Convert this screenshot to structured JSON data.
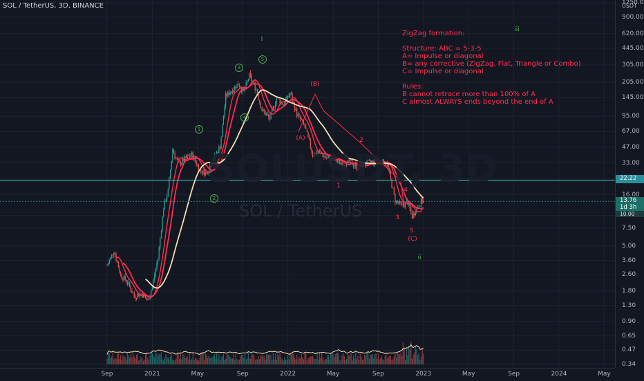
{
  "header": {
    "symbol_title": "SOL / TetherUS, 3D, BINANCE"
  },
  "watermark": {
    "ticker": "SOLUSDT, 3D",
    "pair": "SOL / TetherUS"
  },
  "annotation": {
    "lines": [
      "ZigZag formation:",
      "",
      "Structure: ABC = 5-3-5",
      "A= Impulse or diagonal",
      "B= any corrective (ZigZag, Flat, Triangle or Combo)",
      "C= Impulse or diagonal",
      "",
      "Rules:",
      "B cannot retrace more than 100% of A",
      "C almost ALWAYS ends beyond the end of A"
    ]
  },
  "wave_labels": {
    "major": [
      "I",
      "iii",
      "ii"
    ],
    "impulse": [
      "1",
      "2",
      "3",
      "4",
      "5"
    ],
    "corrective": [
      "(A)",
      "(B)",
      "(C)"
    ],
    "sub_c": [
      "1",
      "2",
      "3",
      "4",
      "5"
    ]
  },
  "price_tags": {
    "horizontal_level": "22.22",
    "last_price": "13.76",
    "countdown": "1d 3h",
    "secondary": "10.00"
  },
  "colors": {
    "background": "#131722",
    "candle_up": "#26a69a",
    "candle_down": "#ef5350",
    "ma_fast": "#ff2e4f",
    "ma_slow": "#f5deb3",
    "level_line": "#4fc3cf",
    "text": "#b2b5be"
  },
  "chart_data": {
    "type": "candlestick",
    "title": "SOL / TetherUS, 3D, BINANCE",
    "y_unit": "USDT",
    "y_scale": "log",
    "ylim": [
      0.34,
      1250
    ],
    "y_ticks": [
      0.34,
      0.47,
      0.65,
      0.9,
      1.3,
      1.8,
      2.6,
      3.6,
      5.0,
      7.5,
      10.0,
      16.0,
      23.0,
      33.0,
      47.0,
      67.0,
      95.0,
      145.0,
      205.0,
      305.0,
      445.0,
      620.0,
      900.0,
      1250.0
    ],
    "x_ticks": [
      "Sep",
      "2021",
      "May",
      "Sep",
      "2022",
      "May",
      "Sep",
      "2023",
      "May",
      "Sep",
      "2024",
      "May"
    ],
    "x_tick_month_index": [
      0,
      4,
      8,
      12,
      16,
      20,
      24,
      28,
      32,
      36,
      40,
      44
    ],
    "x_start": "2020-09",
    "price_path_month_index": [
      0,
      0.6,
      1.2,
      1.8,
      2.4,
      3,
      3.6,
      4,
      4.5,
      5,
      5.4,
      5.8,
      6.3,
      6.9,
      7.5,
      8.2,
      8.8,
      9.4,
      10,
      10.5,
      11,
      11.6,
      12.1,
      12.6,
      13.2,
      13.7,
      14.4,
      15,
      15.6,
      16.2,
      16.8,
      17.5,
      18.2,
      18.8,
      19.5,
      20.2,
      21,
      21.6,
      22.2,
      22.8,
      23.5,
      24.2,
      24.8,
      25.5,
      26.1,
      26.6,
      27,
      27.4,
      27.8,
      28.1
    ],
    "price_path_close": [
      3.2,
      4.5,
      2.6,
      2.2,
      1.6,
      1.7,
      1.45,
      2.0,
      3.8,
      12.0,
      17.5,
      45.0,
      32.0,
      36.0,
      40.0,
      28.0,
      26.0,
      36.0,
      48.0,
      150.0,
      170.0,
      200.0,
      165.0,
      240.0,
      175.0,
      110.0,
      90.0,
      145.0,
      125.0,
      160.0,
      100.0,
      75.0,
      40.0,
      42.0,
      36.0,
      35.0,
      32.0,
      33.0,
      30.0,
      32.0,
      34.0,
      34.0,
      32.0,
      14.0,
      12.5,
      13.5,
      9.8,
      11.8,
      13.76,
      13.76
    ],
    "horizontal_line": 22.22,
    "moving_averages": [
      {
        "name": "MA fast",
        "color": "#ff2e4f"
      },
      {
        "name": "MA slow",
        "color": "#f5deb3"
      }
    ],
    "volume": true,
    "grid": true
  }
}
